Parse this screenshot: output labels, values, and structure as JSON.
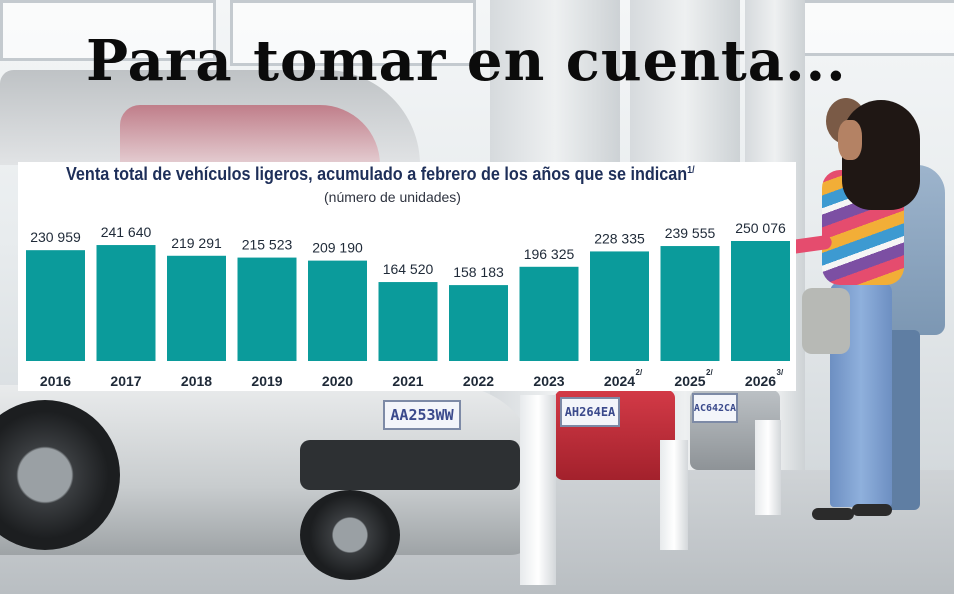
{
  "headline": "Para tomar en cuenta...",
  "chart_data": {
    "type": "bar",
    "title": "Venta total de vehículos ligeros, acumulado a febrero de los años que se indican",
    "title_note": "1/",
    "subtitle": "(número de unidades)",
    "categories": [
      {
        "label": "2016",
        "note": ""
      },
      {
        "label": "2017",
        "note": ""
      },
      {
        "label": "2018",
        "note": ""
      },
      {
        "label": "2019",
        "note": ""
      },
      {
        "label": "2020",
        "note": ""
      },
      {
        "label": "2021",
        "note": ""
      },
      {
        "label": "2022",
        "note": ""
      },
      {
        "label": "2023",
        "note": ""
      },
      {
        "label": "2024",
        "note": "2/"
      },
      {
        "label": "2025",
        "note": "2/"
      },
      {
        "label": "2026",
        "note": "3/"
      }
    ],
    "values": [
      230959,
      241640,
      219291,
      215523,
      209190,
      164520,
      158183,
      196325,
      228335,
      239555,
      250076
    ],
    "value_labels": [
      "230 959",
      "241 640",
      "219 291",
      "215 523",
      "209 190",
      "164 520",
      "158 183",
      "196 325",
      "228 335",
      "239 555",
      "250 076"
    ],
    "ylim": [
      0,
      250076
    ],
    "color": "#0b9b9b"
  },
  "plates": [
    "AA253WW",
    "AH264EA",
    "AC642CA"
  ]
}
